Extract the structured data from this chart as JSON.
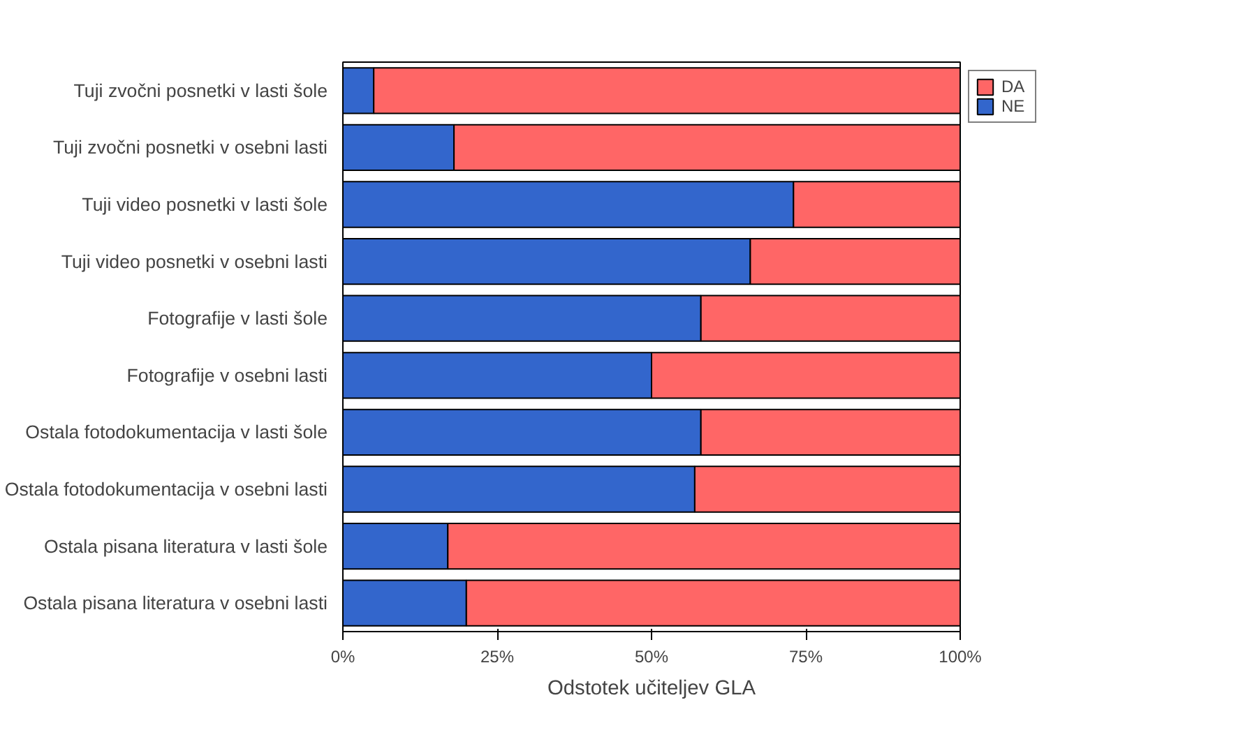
{
  "chart_data": {
    "type": "bar",
    "orientation": "horizontal",
    "stacked": true,
    "xlabel": "Odstotek učiteljev GLA",
    "categories": [
      "Tuji zvočni posnetki v lasti šole",
      "Tuji zvočni posnetki v osebni lasti",
      "Tuji video posnetki v lasti šole",
      "Tuji video posnetki v osebni lasti",
      "Fotografije v lasti šole",
      "Fotografije v osebni lasti",
      "Ostala fotodokumentacija v lasti šole",
      "Ostala fotodokumentacija v osebni lasti",
      "Ostala pisana literatura v lasti šole",
      "Ostala pisana literatura v osebni lasti"
    ],
    "series": [
      {
        "name": "NE",
        "color": "#3366cc",
        "values": [
          5,
          18,
          73,
          66,
          58,
          50,
          58,
          57,
          17,
          20
        ]
      },
      {
        "name": "DA",
        "color": "#ff6666",
        "values": [
          95,
          82,
          27,
          34,
          42,
          50,
          42,
          43,
          83,
          80
        ]
      }
    ],
    "xlim": [
      0,
      100
    ],
    "xticks": [
      {
        "value": 0,
        "label": "0%"
      },
      {
        "value": 25,
        "label": "25%"
      },
      {
        "value": 50,
        "label": "50%"
      },
      {
        "value": 75,
        "label": "75%"
      },
      {
        "value": 100,
        "label": "100%"
      }
    ],
    "legend": "top right",
    "grid": false
  }
}
